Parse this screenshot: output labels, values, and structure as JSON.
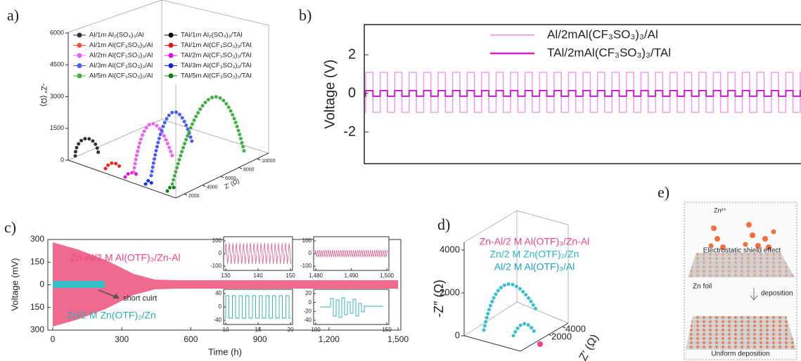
{
  "a": {
    "label": "a)",
    "y_title": "-Z″ (Ω)",
    "y_ticks": [
      0,
      1500,
      3000,
      4500,
      6000
    ],
    "x_title": "Z′ (Ω)",
    "x_ticks": [
      2000,
      4000,
      6000,
      8000,
      10000
    ],
    "legend": [
      {
        "name": "Al/1m Al₂(SO₄)₃/Al",
        "color": "#333333"
      },
      {
        "name": "Al/1m Al(CF₃SO₃)₃/Al",
        "color": "#ff4a4a"
      },
      {
        "name": "Al/2m Al(CF₃SO₃)₃/Al",
        "color": "#f060f0"
      },
      {
        "name": "Al/3m Al(CF₃SO₃)₃/Al",
        "color": "#4a5cff"
      },
      {
        "name": "Al/5m Al(CF₃SO₃)₃/Al",
        "color": "#40b040"
      },
      {
        "name": "TAl/1m Al₂(SO₄)₃/TAl",
        "color": "#000000"
      },
      {
        "name": "TAl/1m Al(CF₃SO₃)₃/TAl",
        "color": "#ee1111"
      },
      {
        "name": "TAl/2m Al(CF₃SO₃)₃/TAl",
        "color": "#e010e0"
      },
      {
        "name": "TAl/3m Al(CF₃SO₃)₃/TAl",
        "color": "#1020dd"
      },
      {
        "name": "TAl/5m Al(CF₃SO₃)₃/TAl",
        "color": "#108010"
      }
    ]
  },
  "b": {
    "label": "b)",
    "y_title": "Voltage (V)",
    "y_ticks": [
      -2,
      0,
      2
    ],
    "legend": [
      {
        "name": "Al/2mAl(CF₃SO₃)₃/Al",
        "color": "#f08cf0"
      },
      {
        "name": "TAl/2mAl(CF₃SO₃)₃/TAl",
        "color": "#d020d0"
      }
    ]
  },
  "c": {
    "label": "c)",
    "y_title": "Voltage (mV)",
    "x_title": "Time (h)",
    "y_ticks": [
      {
        "value": -300,
        "label": "300"
      },
      {
        "value": -150,
        "label": "150"
      },
      0,
      150,
      300
    ],
    "x_ticks": [
      0,
      300,
      600,
      900,
      {
        "value": 1200,
        "label": "1,200"
      },
      {
        "value": 1500,
        "label": "1,500"
      }
    ],
    "series_labels": [
      {
        "name": "Zn-Al/2 M Al(OTF)₃/Zn-Al",
        "color": "#f06a90"
      },
      {
        "name": "Zn/2 M Zn(OTF)₂/Zn",
        "color": "#2ab0b8"
      }
    ],
    "annotation": "short cuirt",
    "insets": [
      {
        "y_ticks": [
          -100,
          0,
          100
        ],
        "x_ticks": [
          130,
          140,
          150
        ]
      },
      {
        "y_ticks": [
          -100,
          0,
          100
        ],
        "x_ticks": [
          {
            "value": 1480,
            "label": "1,480"
          },
          {
            "value": 1490,
            "label": "1,490"
          },
          {
            "value": 1500,
            "label": "1,500"
          }
        ]
      },
      {
        "y_ticks": [
          -40,
          0,
          40
        ],
        "x_ticks": [
          10,
          15,
          20
        ]
      },
      {
        "y_ticks": [
          -40,
          -20,
          0,
          20
        ],
        "x_ticks": [
          100,
          150
        ]
      }
    ]
  },
  "d": {
    "label": "d)",
    "y_title": "-Z″ (Ω)",
    "x_title": "Z′ (Ω)",
    "y_ticks": [
      0,
      2000,
      4000
    ],
    "x_ticks": [
      2000,
      4000
    ],
    "legend": [
      {
        "name": "Zn-Al/2 M Al(OTF)₃/Zn-Al",
        "color": "#f0457a"
      },
      {
        "name": "Zn/2 M Zn(OTF)₂/Zn",
        "color": "#20b8c0"
      },
      {
        "name": "Al/2 M Al(OTF)₃/Al",
        "color": "#1aa0c8"
      }
    ]
  },
  "e": {
    "label": "e)",
    "ion": "Zn²⁺",
    "top_caption": "Electrostatic shield effect",
    "foil": "Zn foil",
    "step": "deposition",
    "bottom_caption": "Uniform deposition"
  }
}
